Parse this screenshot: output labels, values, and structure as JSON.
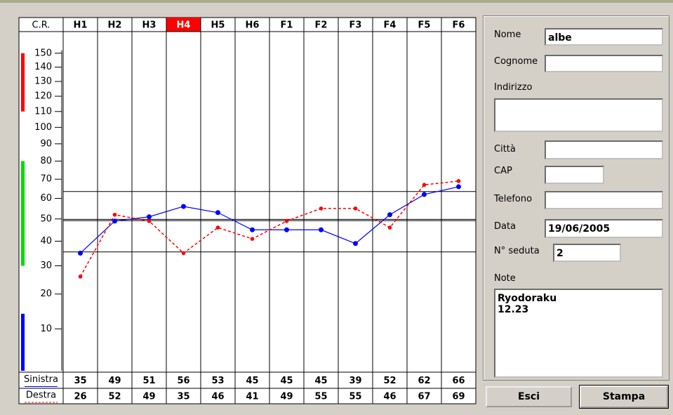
{
  "chart_data": {
    "type": "line",
    "axis_label": "C.R.",
    "categories": [
      "H1",
      "H2",
      "H3",
      "H4",
      "H5",
      "H6",
      "F1",
      "F2",
      "F3",
      "F4",
      "F5",
      "F6"
    ],
    "highlight_category": 3,
    "highlight_color": "#ff0000",
    "series": [
      {
        "name": "Sinistra",
        "color": "#0000ff",
        "values": [
          35,
          49,
          51,
          56,
          53,
          45,
          45,
          45,
          39,
          52,
          62,
          66
        ]
      },
      {
        "name": "Destra",
        "color": "#ff0000",
        "values": [
          26,
          52,
          49,
          35,
          46,
          41,
          49,
          55,
          55,
          46,
          67,
          69
        ]
      }
    ],
    "ylim": [
      2,
      165
    ],
    "yticks": [
      10,
      20,
      30,
      40,
      50,
      60,
      70,
      80,
      90,
      100,
      110,
      120,
      130,
      140,
      150
    ],
    "bands": [
      {
        "color": "#ff0000",
        "from": 110,
        "to": 150
      },
      {
        "color": "#00dd00",
        "from": 30,
        "to": 80
      },
      {
        "color": "#0000ff",
        "from": 2,
        "to": 14
      }
    ],
    "reference_lines": [
      63.5,
      49.8,
      49.2,
      35.5
    ],
    "grid": true
  },
  "form": {
    "fields": [
      {
        "label": "Nome",
        "value": "albe"
      },
      {
        "label": "Cognome"
      },
      {
        "label": "Indirizzo"
      },
      {
        "label": "Città"
      },
      {
        "label": "CAP"
      },
      {
        "label": "Telefono"
      },
      {
        "label": "Data",
        "value": "19/06/2005"
      },
      {
        "label": "N° seduta",
        "value": "2"
      },
      {
        "label": "Note",
        "value": "Ryodoraku\n12.23"
      }
    ],
    "buttons": [
      "Esci",
      "Stampa"
    ]
  }
}
